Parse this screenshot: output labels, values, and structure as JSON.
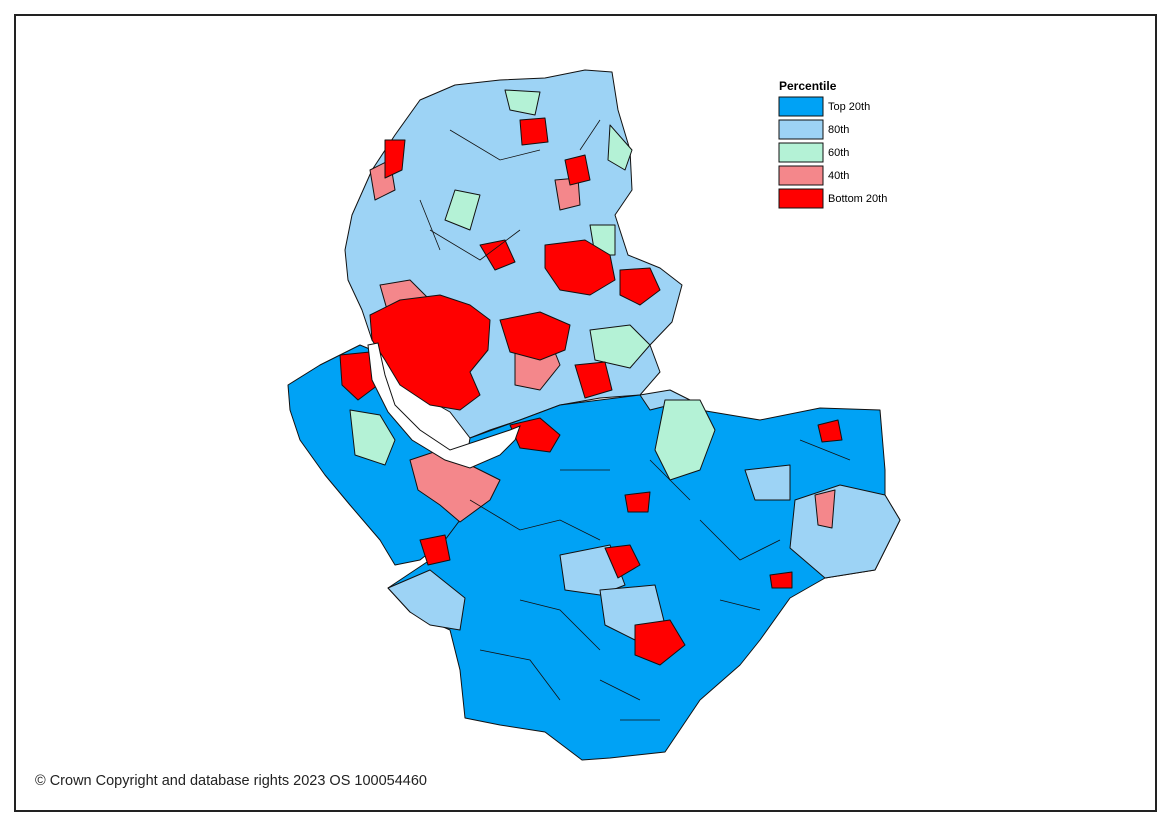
{
  "legend": {
    "title": "Percentile",
    "items": [
      {
        "label": "Top 20th",
        "color": "#00a2f5"
      },
      {
        "label": "80th",
        "color": "#9dd3f5"
      },
      {
        "label": "60th",
        "color": "#b4f2d6"
      },
      {
        "label": "40th",
        "color": "#f4878b"
      },
      {
        "label": "Bottom 20th",
        "color": "#ff0000"
      }
    ]
  },
  "footer": "© Crown Copyright and database rights 2023 OS 100054460"
}
